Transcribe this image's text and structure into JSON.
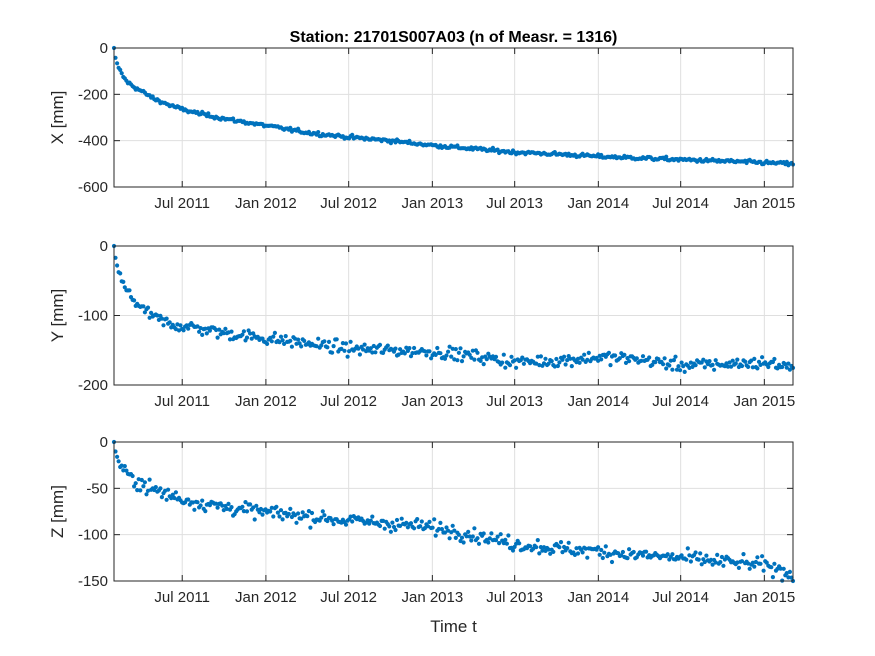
{
  "figure": {
    "title": "Station: 21701S007A03 (n of Measr. = 1316)",
    "xlabel": "Time t"
  },
  "colors": {
    "marker": "#0072BD",
    "grid": "#dfdfdf",
    "axis": "#262626"
  },
  "chart_data": [
    {
      "type": "scatter",
      "title": "Station: 21701S007A03 (n of Measr. = 1316)",
      "xlabel": "",
      "ylabel": "X [mm]",
      "xlim": [
        "2011-02-01",
        "2015-03-05"
      ],
      "ylim": [
        -600,
        0
      ],
      "xticks": [
        "2011-07-01",
        "2012-01-01",
        "2012-07-01",
        "2013-01-01",
        "2013-07-01",
        "2014-01-01",
        "2014-07-01",
        "2015-01-01"
      ],
      "xtick_labels": [
        "Jul 2011",
        "Jan 2012",
        "Jul 2012",
        "Jan 2013",
        "Jul 2013",
        "Jan 2014",
        "Jul 2014",
        "Jan 2015"
      ],
      "yticks": [
        0,
        -200,
        -400,
        -600
      ],
      "ytick_labels": [
        "0",
        "-200",
        "-400",
        "-600"
      ],
      "grid": true,
      "series": [
        {
          "x": [
            "2011-02-01",
            "2011-02-05",
            "2011-02-12",
            "2011-02-20",
            "2011-03-01",
            "2011-03-15",
            "2011-04-01",
            "2011-05-01",
            "2011-06-01",
            "2011-07-01",
            "2011-08-01",
            "2011-10-01",
            "2012-01-01",
            "2012-04-01",
            "2012-07-01",
            "2012-10-01",
            "2013-01-01",
            "2013-04-01",
            "2013-07-01",
            "2013-10-01",
            "2014-01-01",
            "2014-04-01",
            "2014-07-01",
            "2014-10-01",
            "2015-01-01",
            "2015-03-05"
          ],
          "y": [
            0,
            -50,
            -90,
            -120,
            -145,
            -165,
            -185,
            -220,
            -245,
            -265,
            -280,
            -305,
            -335,
            -365,
            -385,
            -400,
            -420,
            -435,
            -450,
            -458,
            -468,
            -475,
            -482,
            -488,
            -495,
            -500
          ]
        }
      ]
    },
    {
      "type": "scatter",
      "xlabel": "",
      "ylabel": "Y [mm]",
      "xlim": [
        "2011-02-01",
        "2015-03-05"
      ],
      "ylim": [
        -200,
        0
      ],
      "xticks": [
        "2011-07-01",
        "2012-01-01",
        "2012-07-01",
        "2013-01-01",
        "2013-07-01",
        "2014-01-01",
        "2014-07-01",
        "2015-01-01"
      ],
      "xtick_labels": [
        "Jul 2011",
        "Jan 2012",
        "Jul 2012",
        "Jan 2013",
        "Jul 2013",
        "Jan 2014",
        "Jul 2014",
        "Jan 2015"
      ],
      "yticks": [
        0,
        -100,
        -200
      ],
      "ytick_labels": [
        "0",
        "-100",
        "-200"
      ],
      "grid": true,
      "series": [
        {
          "x": [
            "2011-02-01",
            "2011-02-05",
            "2011-02-12",
            "2011-02-20",
            "2011-03-01",
            "2011-03-15",
            "2011-04-01",
            "2011-05-01",
            "2011-06-01",
            "2011-07-01",
            "2011-08-01",
            "2011-10-01",
            "2012-01-01",
            "2012-04-01",
            "2012-07-01",
            "2012-10-01",
            "2013-01-01",
            "2013-04-01",
            "2013-07-01",
            "2013-10-01",
            "2014-01-01",
            "2014-04-01",
            "2014-07-01",
            "2014-10-01",
            "2015-01-01",
            "2015-03-05"
          ],
          "y": [
            0,
            -20,
            -40,
            -55,
            -65,
            -75,
            -90,
            -103,
            -112,
            -115,
            -118,
            -125,
            -133,
            -140,
            -148,
            -150,
            -152,
            -158,
            -167,
            -165,
            -160,
            -163,
            -172,
            -170,
            -168,
            -174
          ]
        }
      ]
    },
    {
      "type": "scatter",
      "xlabel": "Time t",
      "ylabel": "Z [mm]",
      "xlim": [
        "2011-02-01",
        "2015-03-05"
      ],
      "ylim": [
        -150,
        0
      ],
      "xticks": [
        "2011-07-01",
        "2012-01-01",
        "2012-07-01",
        "2013-01-01",
        "2013-07-01",
        "2014-01-01",
        "2014-07-01",
        "2015-01-01"
      ],
      "xtick_labels": [
        "Jul 2011",
        "Jan 2012",
        "Jul 2012",
        "Jan 2013",
        "Jul 2013",
        "Jan 2014",
        "Jul 2014",
        "Jan 2015"
      ],
      "yticks": [
        0,
        -50,
        -100,
        -150
      ],
      "ytick_labels": [
        "0",
        "-50",
        "-100",
        "-150"
      ],
      "grid": true,
      "series": [
        {
          "x": [
            "2011-02-01",
            "2011-02-05",
            "2011-02-12",
            "2011-02-20",
            "2011-03-01",
            "2011-03-15",
            "2011-04-01",
            "2011-05-01",
            "2011-06-01",
            "2011-07-01",
            "2011-08-01",
            "2011-10-01",
            "2012-01-01",
            "2012-04-01",
            "2012-07-01",
            "2012-10-01",
            "2013-01-01",
            "2013-04-01",
            "2013-07-01",
            "2013-10-01",
            "2014-01-01",
            "2014-04-01",
            "2014-07-01",
            "2014-10-01",
            "2015-01-01",
            "2015-03-05"
          ],
          "y": [
            0,
            -12,
            -22,
            -30,
            -35,
            -40,
            -45,
            -52,
            -57,
            -62,
            -65,
            -70,
            -76,
            -80,
            -85,
            -88,
            -92,
            -100,
            -110,
            -115,
            -118,
            -122,
            -125,
            -129,
            -133,
            -143
          ]
        }
      ]
    }
  ]
}
